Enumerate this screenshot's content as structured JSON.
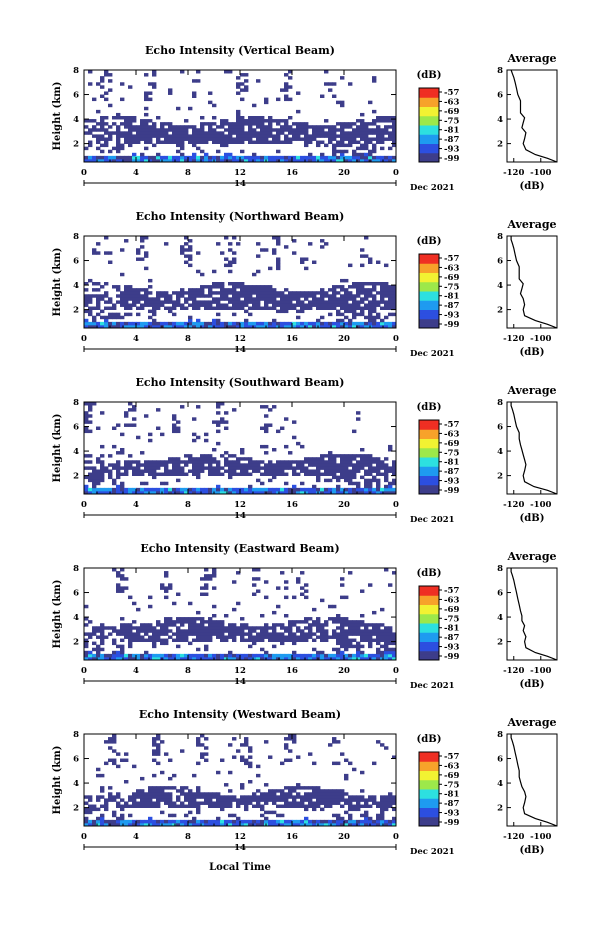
{
  "figure": {
    "x_axis_label": "Local Time",
    "date_label": "Dec 2021",
    "day_label": "14",
    "avg_title": "Average",
    "unit_label": "(dB)",
    "colorbar_labels": [
      "-57",
      "-63",
      "-69",
      "-75",
      "-81",
      "-87",
      "-93",
      "-99"
    ]
  },
  "colors": {
    "background_echo": "#3d3d8a",
    "colormap": [
      "#3d3d8a",
      "#2c4fe0",
      "#1e9bf0",
      "#2de0e0",
      "#9de84a",
      "#f2f232",
      "#f7a22a",
      "#ef2f23"
    ]
  },
  "chart_data": [
    {
      "type": "heatmap",
      "title": "Echo Intensity (Vertical Beam)",
      "ylabel": "Height (km)",
      "x_ticks": [
        "0",
        "4",
        "8",
        "12",
        "16",
        "20",
        "0"
      ],
      "y_ticks": [
        "2",
        "4",
        "6",
        "8"
      ],
      "xlim": [
        0,
        24
      ],
      "ylim": [
        0.5,
        8
      ],
      "cloud_layers_km": [
        [
          2.1,
          3.9
        ],
        [
          0.5,
          1.1
        ]
      ],
      "profile": {
        "type": "line",
        "title": "Average",
        "xlabel": "(dB)",
        "x_ticks": [
          "-120",
          "-100"
        ],
        "xlim": [
          -125,
          -88
        ],
        "ylim": [
          0.5,
          8
        ],
        "x": [
          -88,
          -95,
          -104,
          -111,
          -113,
          -112,
          -111,
          -114,
          -113,
          -112,
          -115,
          -115,
          -115,
          -117,
          -118,
          -119,
          -120,
          -121,
          -122
        ],
        "y": [
          0.5,
          0.8,
          1.1,
          1.5,
          2.0,
          2.4,
          2.9,
          3.3,
          3.7,
          4.1,
          4.5,
          5.0,
          5.5,
          6.0,
          6.5,
          7.0,
          7.4,
          7.7,
          8.0
        ]
      }
    },
    {
      "type": "heatmap",
      "title": "Echo Intensity (Northward Beam)",
      "ylabel": "Height (km)",
      "x_ticks": [
        "0",
        "4",
        "8",
        "12",
        "16",
        "20",
        "0"
      ],
      "y_ticks": [
        "2",
        "4",
        "6",
        "8"
      ],
      "xlim": [
        0,
        24
      ],
      "ylim": [
        0.5,
        8
      ],
      "cloud_layers_km": [
        [
          2.0,
          3.9
        ],
        [
          0.5,
          1.1
        ]
      ],
      "profile": {
        "type": "line",
        "title": "Average",
        "xlabel": "(dB)",
        "x_ticks": [
          "-120",
          "-100"
        ],
        "xlim": [
          -125,
          -88
        ],
        "ylim": [
          0.5,
          8
        ],
        "x": [
          -88,
          -95,
          -104,
          -112,
          -113,
          -112,
          -113,
          -115,
          -114,
          -113,
          -116,
          -116,
          -116,
          -118,
          -119,
          -120,
          -121,
          -122,
          -122
        ],
        "y": [
          0.5,
          0.8,
          1.1,
          1.5,
          2.0,
          2.4,
          2.9,
          3.3,
          3.7,
          4.1,
          4.5,
          5.0,
          5.5,
          6.0,
          6.5,
          7.0,
          7.4,
          7.7,
          8.0
        ]
      }
    },
    {
      "type": "heatmap",
      "title": "Echo Intensity (Southward Beam)",
      "ylabel": "Height (km)",
      "x_ticks": [
        "0",
        "4",
        "8",
        "12",
        "16",
        "20",
        "0"
      ],
      "y_ticks": [
        "2",
        "4",
        "6",
        "8"
      ],
      "xlim": [
        0,
        24
      ],
      "ylim": [
        0.5,
        8
      ],
      "cloud_layers_km": [
        [
          2.0,
          3.5
        ],
        [
          0.5,
          1.1
        ]
      ],
      "profile": {
        "type": "line",
        "title": "Average",
        "xlabel": "(dB)",
        "x_ticks": [
          "-120",
          "-100"
        ],
        "xlim": [
          -125,
          -88
        ],
        "ylim": [
          0.5,
          8
        ],
        "x": [
          -88,
          -95,
          -105,
          -112,
          -113,
          -112,
          -111,
          -112,
          -113,
          -114,
          -115,
          -116,
          -116,
          -118,
          -119,
          -120,
          -121,
          -122,
          -122
        ],
        "y": [
          0.5,
          0.8,
          1.1,
          1.5,
          2.0,
          2.4,
          2.9,
          3.3,
          3.7,
          4.1,
          4.5,
          5.0,
          5.5,
          6.0,
          6.5,
          7.0,
          7.4,
          7.7,
          8.0
        ]
      }
    },
    {
      "type": "heatmap",
      "title": "Echo Intensity (Eastward Beam)",
      "ylabel": "Height (km)",
      "x_ticks": [
        "0",
        "4",
        "8",
        "12",
        "16",
        "20",
        "0"
      ],
      "y_ticks": [
        "2",
        "4",
        "6",
        "8"
      ],
      "xlim": [
        0,
        24
      ],
      "ylim": [
        0.5,
        8
      ],
      "cloud_layers_km": [
        [
          2.0,
          3.7
        ],
        [
          0.5,
          1.1
        ]
      ],
      "profile": {
        "type": "line",
        "title": "Average",
        "xlabel": "(dB)",
        "x_ticks": [
          "-120",
          "-100"
        ],
        "xlim": [
          -125,
          -88
        ],
        "ylim": [
          0.5,
          8
        ],
        "x": [
          -88,
          -95,
          -104,
          -111,
          -112,
          -111,
          -113,
          -112,
          -114,
          -114,
          -115,
          -116,
          -117,
          -118,
          -119,
          -120,
          -121,
          -122,
          -122
        ],
        "y": [
          0.5,
          0.8,
          1.1,
          1.5,
          2.0,
          2.4,
          2.9,
          3.3,
          3.7,
          4.1,
          4.5,
          5.0,
          5.5,
          6.0,
          6.5,
          7.0,
          7.4,
          7.7,
          8.0
        ]
      }
    },
    {
      "type": "heatmap",
      "title": "Echo Intensity (Westward Beam)",
      "ylabel": "Height (km)",
      "x_ticks": [
        "0",
        "4",
        "8",
        "12",
        "16",
        "20",
        "0"
      ],
      "y_ticks": [
        "2",
        "4",
        "6",
        "8"
      ],
      "xlim": [
        0,
        24
      ],
      "ylim": [
        0.5,
        8
      ],
      "cloud_layers_km": [
        [
          2.0,
          3.4
        ],
        [
          0.5,
          1.1
        ]
      ],
      "profile": {
        "type": "line",
        "title": "Average",
        "xlabel": "(dB)",
        "x_ticks": [
          "-120",
          "-100"
        ],
        "xlim": [
          -125,
          -88
        ],
        "ylim": [
          0.5,
          8
        ],
        "x": [
          -88,
          -95,
          -104,
          -112,
          -113,
          -112,
          -111,
          -112,
          -114,
          -115,
          -116,
          -116,
          -117,
          -118,
          -119,
          -120,
          -121,
          -122,
          -122
        ],
        "y": [
          0.5,
          0.8,
          1.1,
          1.5,
          2.0,
          2.4,
          2.9,
          3.3,
          3.7,
          4.1,
          4.5,
          5.0,
          5.5,
          6.0,
          6.5,
          7.0,
          7.4,
          7.7,
          8.0
        ]
      }
    }
  ]
}
